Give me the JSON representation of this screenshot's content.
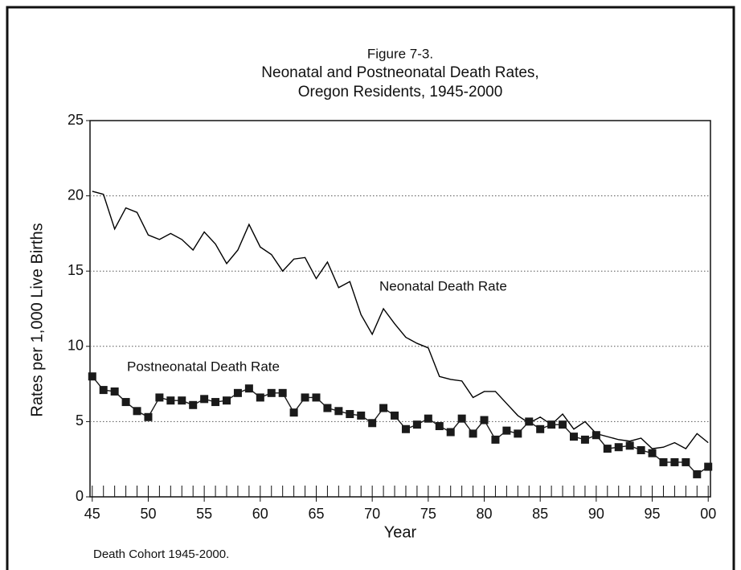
{
  "chart_data": {
    "type": "line",
    "title": [
      "Figure 7-3.",
      "Neonatal and Postneonatal Death Rates,",
      "Oregon Residents, 1945-2000"
    ],
    "x_label": "Year",
    "y_label": "Rates per 1,000 Live Births",
    "footnote": "Death Cohort 1945-2000.",
    "x": [
      1945,
      1946,
      1947,
      1948,
      1949,
      1950,
      1951,
      1952,
      1953,
      1954,
      1955,
      1956,
      1957,
      1958,
      1959,
      1960,
      1961,
      1962,
      1963,
      1964,
      1965,
      1966,
      1967,
      1968,
      1969,
      1970,
      1971,
      1972,
      1973,
      1974,
      1975,
      1976,
      1977,
      1978,
      1979,
      1980,
      1981,
      1982,
      1983,
      1984,
      1985,
      1986,
      1987,
      1988,
      1989,
      1990,
      1991,
      1992,
      1993,
      1994,
      1995,
      1996,
      1997,
      1998,
      1999,
      2000
    ],
    "series": [
      {
        "name": "Neonatal Death Rate",
        "color": "#000000",
        "marker": "none",
        "values": [
          20.3,
          20.1,
          17.8,
          19.2,
          18.9,
          17.4,
          17.1,
          17.5,
          17.1,
          16.4,
          17.6,
          16.8,
          15.5,
          16.4,
          18.1,
          16.6,
          16.1,
          15.0,
          15.8,
          15.9,
          14.5,
          15.6,
          13.9,
          14.3,
          12.1,
          10.8,
          12.5,
          11.5,
          10.6,
          10.2,
          9.9,
          8.0,
          7.8,
          7.7,
          6.6,
          7.0,
          7.0,
          6.2,
          5.4,
          4.9,
          5.3,
          4.8,
          5.5,
          4.5,
          5.0,
          4.2,
          4.0,
          3.8,
          3.7,
          3.9,
          3.2,
          3.3,
          3.6,
          3.2,
          4.2,
          3.6
        ]
      },
      {
        "name": "Postneonatal Death Rate",
        "color": "#1a1a1a",
        "marker": "square",
        "values": [
          8.0,
          7.1,
          7.0,
          6.3,
          5.7,
          5.3,
          6.6,
          6.4,
          6.4,
          6.1,
          6.5,
          6.3,
          6.4,
          6.9,
          7.2,
          6.6,
          6.9,
          6.9,
          5.6,
          6.6,
          6.6,
          5.9,
          5.7,
          5.5,
          5.4,
          4.9,
          5.9,
          5.4,
          4.5,
          4.8,
          5.2,
          4.7,
          4.3,
          5.2,
          4.2,
          5.1,
          3.8,
          4.4,
          4.2,
          5.0,
          4.5,
          4.8,
          4.8,
          4.0,
          3.8,
          4.1,
          3.2,
          3.3,
          3.4,
          3.1,
          2.9,
          2.3,
          2.3,
          2.3,
          1.5,
          2.0
        ]
      }
    ],
    "xlim": [
      1944.8,
      2000.2
    ],
    "xticks": [
      {
        "value": 1945,
        "label": "45"
      },
      {
        "value": 1950,
        "label": "50"
      },
      {
        "value": 1955,
        "label": "55"
      },
      {
        "value": 1960,
        "label": "60"
      },
      {
        "value": 1965,
        "label": "65"
      },
      {
        "value": 1970,
        "label": "70"
      },
      {
        "value": 1975,
        "label": "75"
      },
      {
        "value": 1980,
        "label": "80"
      },
      {
        "value": 1985,
        "label": "85"
      },
      {
        "value": 1990,
        "label": "90"
      },
      {
        "value": 1995,
        "label": "95"
      },
      {
        "value": 2000,
        "label": "00"
      }
    ],
    "ylim": [
      0,
      25
    ],
    "yticks": [
      0,
      5,
      10,
      15,
      20,
      25
    ],
    "grid": true
  }
}
